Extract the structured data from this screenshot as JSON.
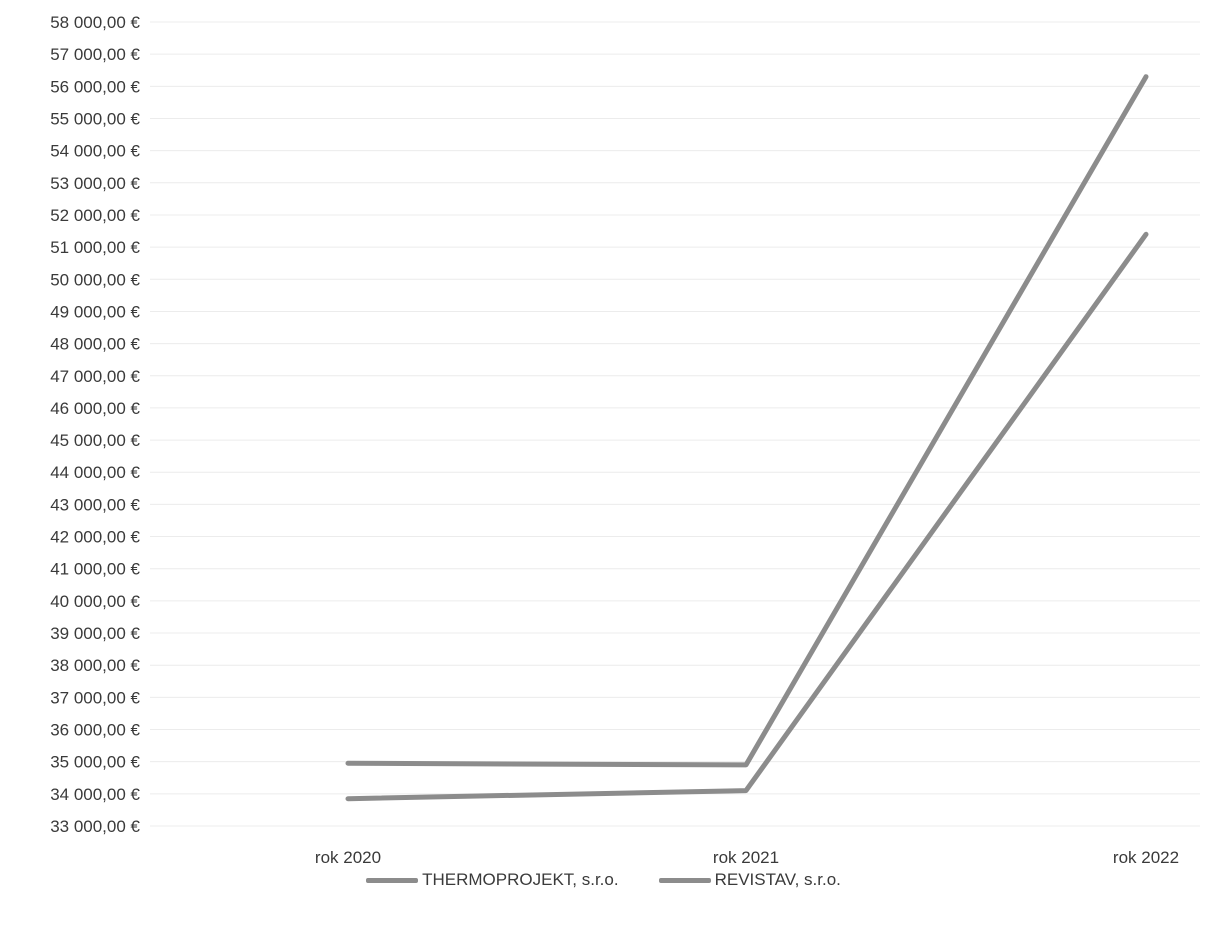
{
  "chart_data": {
    "type": "line",
    "categories": [
      "rok 2020",
      "rok 2021",
      "rok 2022"
    ],
    "series": [
      {
        "name": "THERMOPROJEKT, s.r.o.",
        "values": [
          34950,
          34900,
          56300
        ],
        "color": "#8c8c8c"
      },
      {
        "name": "REVISTAV, s.r.o.",
        "values": [
          33850,
          34100,
          51400
        ],
        "color": "#8c8c8c"
      }
    ],
    "ylim": [
      33000,
      58000
    ],
    "ytick_step": 1000,
    "ytick_labels": [
      "58 000,00 €",
      "57 000,00 €",
      "56 000,00 €",
      "55 000,00 €",
      "54 000,00 €",
      "53 000,00 €",
      "52 000,00 €",
      "51 000,00 €",
      "50 000,00 €",
      "49 000,00 €",
      "48 000,00 €",
      "47 000,00 €",
      "46 000,00 €",
      "45 000,00 €",
      "44 000,00 €",
      "43 000,00 €",
      "42 000,00 €",
      "41 000,00 €",
      "40 000,00 €",
      "39 000,00 €",
      "38 000,00 €",
      "37 000,00 €",
      "36 000,00 €",
      "35 000,00 €",
      "34 000,00 €",
      "33 000,00 €"
    ],
    "grid": true,
    "legend_position": "bottom",
    "title": "",
    "xlabel": "",
    "ylabel": ""
  }
}
